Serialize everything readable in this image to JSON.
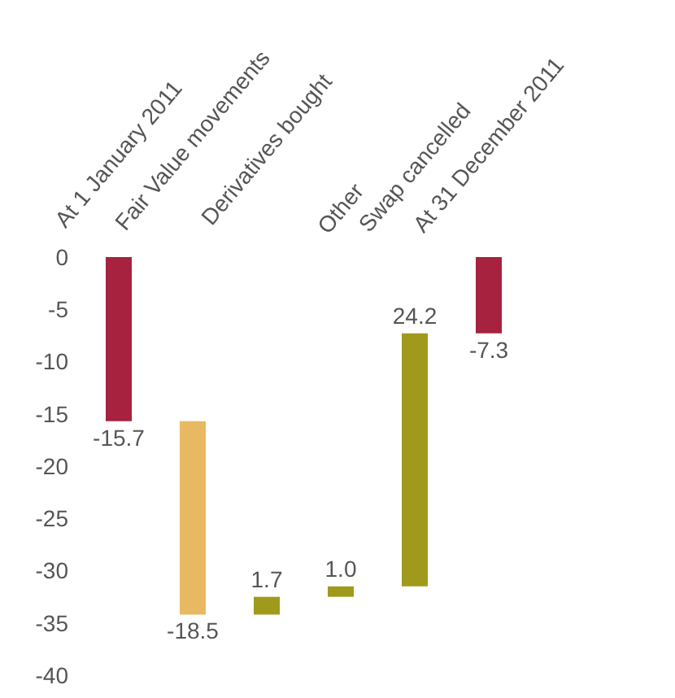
{
  "chart_data": {
    "type": "bar",
    "categories": [
      "At 1 January 2011",
      "Fair Value movements",
      "Derivatives bought",
      "Other",
      "Swap cancelled",
      "At 31 December 2011"
    ],
    "values": [
      -15.7,
      -18.5,
      1.7,
      1.0,
      24.2,
      -7.3
    ],
    "base": [
      0,
      -15.7,
      -34.2,
      -32.5,
      -31.5,
      0
    ],
    "colors": [
      "#a6223f",
      "#e8b862",
      "#9f9a1c",
      "#9f9a1c",
      "#9f9a1c",
      "#a6223f"
    ],
    "value_labels": [
      "-15.7",
      "-18.5",
      "1.7",
      "1.0",
      "24.2",
      "-7.3"
    ],
    "ylim": [
      -40,
      0
    ],
    "yticks": [
      0,
      -5,
      -10,
      -15,
      -20,
      -25,
      -30,
      -35,
      -40
    ]
  }
}
